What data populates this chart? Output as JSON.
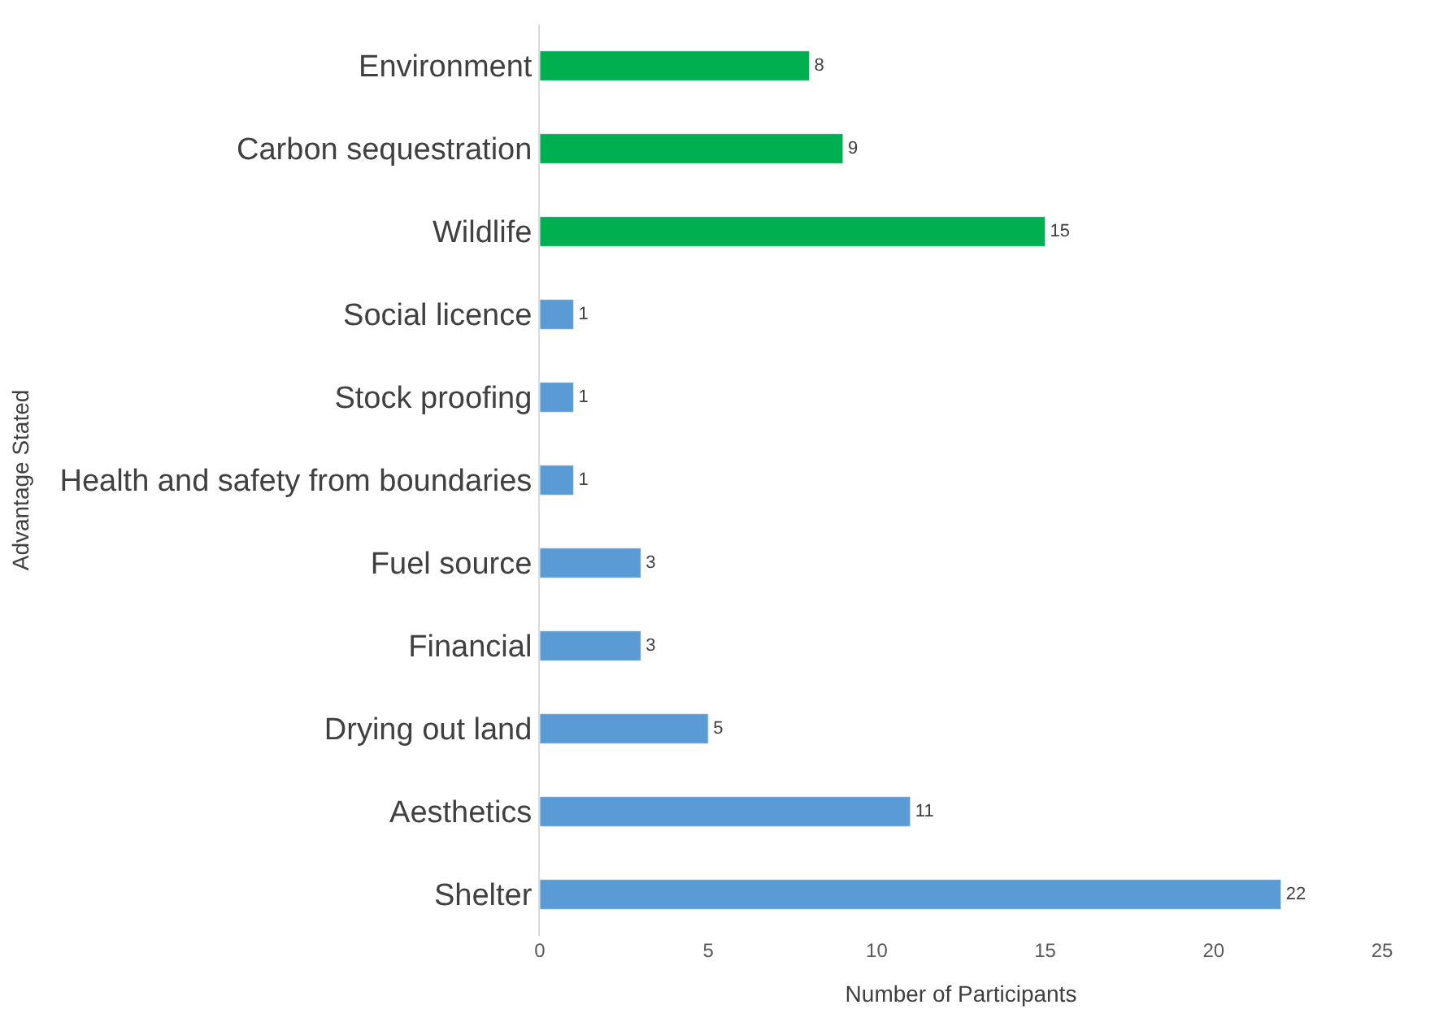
{
  "chart_data": {
    "type": "bar",
    "orientation": "horizontal",
    "categories": [
      "Environment",
      "Carbon sequestration",
      "Wildlife",
      "Social licence",
      "Stock proofing",
      "Health and safety from boundaries",
      "Fuel source",
      "Financial",
      "Drying out land",
      "Aesthetics",
      "Shelter"
    ],
    "values": [
      8,
      9,
      15,
      1,
      1,
      1,
      3,
      3,
      5,
      11,
      22
    ],
    "colors": [
      "#00b050",
      "#00b050",
      "#00b050",
      "#5b9bd5",
      "#5b9bd5",
      "#5b9bd5",
      "#5b9bd5",
      "#5b9bd5",
      "#5b9bd5",
      "#5b9bd5",
      "#5b9bd5"
    ],
    "xlim": [
      0,
      25
    ],
    "xticks": [
      0,
      5,
      10,
      15,
      20,
      25
    ],
    "xlabel": "Number of Participants",
    "ylabel": "Advantage Stated",
    "data_labels": true
  }
}
